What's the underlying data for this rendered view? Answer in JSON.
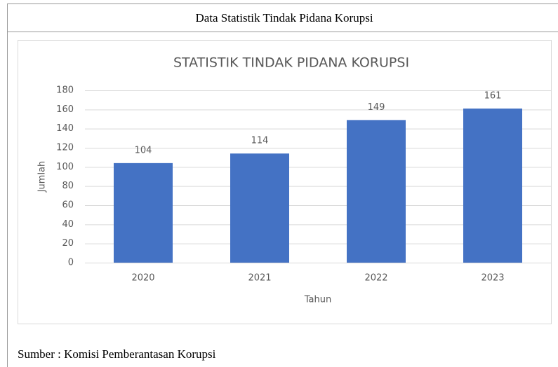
{
  "caption": "Data Statistik Tindak Pidana Korupsi",
  "source": "Sumber : Komisi Pemberantasan Korupsi",
  "chart_data": {
    "type": "bar",
    "title": "STATISTIK TINDAK PIDANA KORUPSI",
    "categories": [
      "2020",
      "2021",
      "2022",
      "2023"
    ],
    "values": [
      104,
      114,
      149,
      161
    ],
    "color": "#4472c4",
    "x_label": "Tahun",
    "y_label": "Jumlah",
    "ylim": [
      0,
      180
    ],
    "yticks": [
      0,
      20,
      40,
      60,
      80,
      100,
      120,
      140,
      160,
      180
    ],
    "grid": true
  }
}
